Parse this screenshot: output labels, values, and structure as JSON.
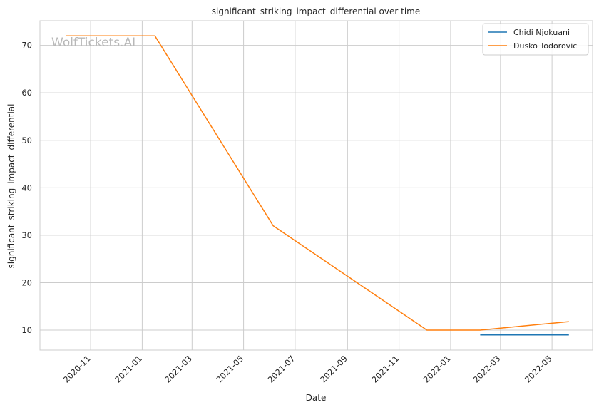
{
  "chart_data": {
    "type": "line",
    "title": "significant_striking_impact_differential over time",
    "xlabel": "Date",
    "ylabel": "significant_striking_impact_differential",
    "watermark": "WolfTickets.AI",
    "x_ticks": [
      "2020-11",
      "2021-01",
      "2021-03",
      "2021-05",
      "2021-07",
      "2021-09",
      "2021-11",
      "2022-01",
      "2022-03",
      "2022-05"
    ],
    "y_ticks": [
      10,
      20,
      30,
      40,
      50,
      60,
      70
    ],
    "xlim": [
      "2020-09-02",
      "2022-06-18"
    ],
    "ylim": [
      5.8,
      75.2
    ],
    "grid": true,
    "legend_position": "top-right",
    "series": [
      {
        "name": "Chidi Njokuani",
        "color": "#1f77b4",
        "points": [
          [
            "2022-02-05",
            9.0
          ],
          [
            "2022-05-21",
            9.0
          ]
        ]
      },
      {
        "name": "Dusko Todorovic",
        "color": "#ff7f0e",
        "points": [
          [
            "2020-10-03",
            72.0
          ],
          [
            "2021-01-16",
            72.0
          ],
          [
            "2021-06-05",
            32.0
          ],
          [
            "2021-12-04",
            10.0
          ],
          [
            "2022-02-05",
            10.0
          ],
          [
            "2022-05-21",
            11.8
          ]
        ]
      }
    ]
  }
}
